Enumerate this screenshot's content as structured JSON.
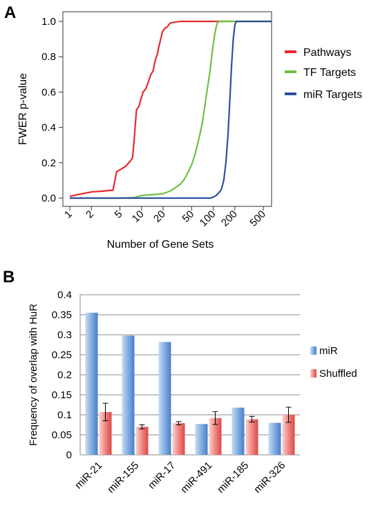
{
  "panels": {
    "a_label": "A",
    "b_label": "B"
  },
  "chart_data": [
    {
      "type": "line",
      "title": "",
      "xlabel": "Number of Gene Sets",
      "ylabel": "FWER p-value",
      "x_scale": "log",
      "xlim": [
        0.8,
        650
      ],
      "ylim": [
        0,
        1
      ],
      "x_ticks": [
        1,
        2,
        5,
        10,
        20,
        50,
        100,
        200,
        500
      ],
      "x_tick_labels": [
        "1",
        "2",
        "5",
        "10",
        "20",
        "50",
        "100",
        "200",
        "500"
      ],
      "y_ticks": [
        0,
        0.2,
        0.4,
        0.6,
        0.8,
        1.0
      ],
      "y_tick_labels": [
        "0.0",
        "0.2",
        "0.4",
        "0.6",
        "0.8",
        "1.0"
      ],
      "grid": false,
      "legend_position": "right",
      "series": [
        {
          "name": "Pathways",
          "color": "#e8282b",
          "points": [
            [
              1,
              0.01
            ],
            [
              1.5,
              0.025
            ],
            [
              2,
              0.035
            ],
            [
              3,
              0.04
            ],
            [
              4,
              0.045
            ],
            [
              4.5,
              0.15
            ],
            [
              5,
              0.16
            ],
            [
              5.5,
              0.17
            ],
            [
              6,
              0.18
            ],
            [
              7,
              0.21
            ],
            [
              7.5,
              0.23
            ],
            [
              8,
              0.36
            ],
            [
              8.5,
              0.5
            ],
            [
              9.2,
              0.52
            ],
            [
              9.8,
              0.56
            ],
            [
              10.5,
              0.6
            ],
            [
              11.5,
              0.62
            ],
            [
              12.5,
              0.66
            ],
            [
              13.5,
              0.7
            ],
            [
              14.5,
              0.72
            ],
            [
              15.5,
              0.78
            ],
            [
              16.5,
              0.81
            ],
            [
              17.5,
              0.86
            ],
            [
              18.5,
              0.9
            ],
            [
              19.5,
              0.94
            ],
            [
              21,
              0.96
            ],
            [
              23,
              0.97
            ],
            [
              25,
              0.99
            ],
            [
              28,
              0.995
            ],
            [
              35,
              1.0
            ],
            [
              650,
              1.0
            ]
          ]
        },
        {
          "name": "TF Targets",
          "color": "#6dbe45",
          "points": [
            [
              1,
              0.0
            ],
            [
              5,
              0.0
            ],
            [
              8,
              0.003
            ],
            [
              10,
              0.015
            ],
            [
              15,
              0.02
            ],
            [
              20,
              0.025
            ],
            [
              25,
              0.04
            ],
            [
              30,
              0.06
            ],
            [
              35,
              0.08
            ],
            [
              40,
              0.11
            ],
            [
              45,
              0.15
            ],
            [
              50,
              0.19
            ],
            [
              55,
              0.24
            ],
            [
              60,
              0.3
            ],
            [
              65,
              0.36
            ],
            [
              70,
              0.42
            ],
            [
              75,
              0.5
            ],
            [
              80,
              0.58
            ],
            [
              85,
              0.65
            ],
            [
              90,
              0.72
            ],
            [
              95,
              0.8
            ],
            [
              100,
              0.87
            ],
            [
              105,
              0.93
            ],
            [
              110,
              0.97
            ],
            [
              115,
              0.995
            ],
            [
              120,
              1.0
            ],
            [
              650,
              1.0
            ]
          ]
        },
        {
          "name": "miR Targets",
          "color": "#2d4f9e",
          "points": [
            [
              1,
              0.0
            ],
            [
              90,
              0.0
            ],
            [
              100,
              0.005
            ],
            [
              110,
              0.015
            ],
            [
              120,
              0.03
            ],
            [
              130,
              0.05
            ],
            [
              140,
              0.1
            ],
            [
              150,
              0.2
            ],
            [
              160,
              0.35
            ],
            [
              170,
              0.55
            ],
            [
              180,
              0.75
            ],
            [
              190,
              0.9
            ],
            [
              200,
              0.98
            ],
            [
              210,
              1.0
            ],
            [
              650,
              1.0
            ]
          ]
        }
      ]
    },
    {
      "type": "bar",
      "title": "",
      "xlabel": "",
      "ylabel": "Frequency of overlap with HuR",
      "categories": [
        "miR-21",
        "miR-155",
        "miR-17",
        "miR-491",
        "miR-185",
        "miR-326"
      ],
      "ylim": [
        0,
        0.4
      ],
      "y_ticks": [
        0,
        0.05,
        0.1,
        0.15,
        0.2,
        0.25,
        0.3,
        0.35,
        0.4
      ],
      "y_tick_labels": [
        "0",
        "0.05",
        "0.1",
        "0.15",
        "0.2",
        "0.25",
        "0.3",
        "0.35",
        "0.4"
      ],
      "grid": true,
      "legend_position": "right",
      "series": [
        {
          "name": "miR",
          "color": "#6f9fd8",
          "values": [
            0.355,
            0.298,
            0.282,
            0.077,
            0.118,
            0.08
          ]
        },
        {
          "name": "Shuffled",
          "color": "#e8706d",
          "values": [
            0.107,
            0.07,
            0.079,
            0.092,
            0.089,
            0.1
          ],
          "errors": [
            0.022,
            0.005,
            0.004,
            0.016,
            0.007,
            0.019
          ]
        }
      ]
    }
  ]
}
